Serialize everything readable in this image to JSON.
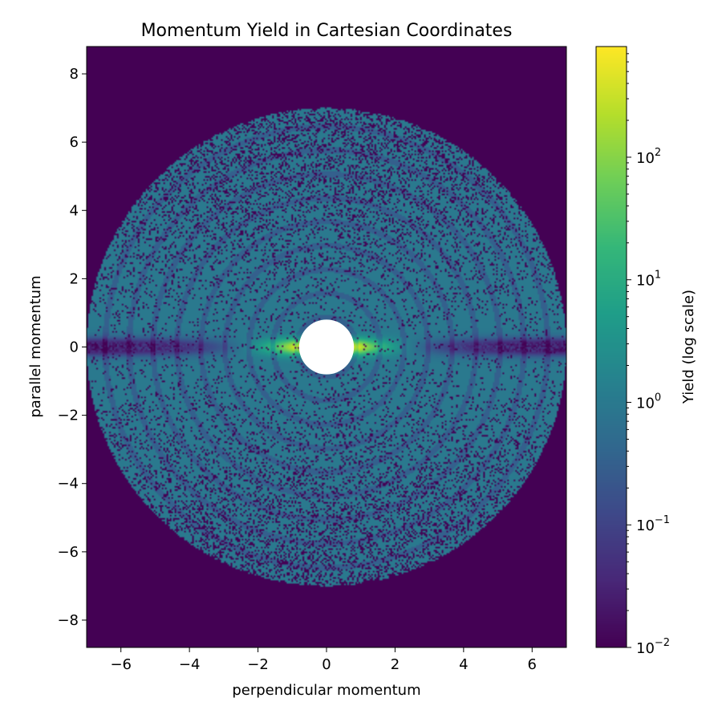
{
  "chart_data": {
    "type": "heatmap",
    "title": "Momentum Yield in Cartesian Coordinates",
    "xlabel": "perpendicular momentum",
    "ylabel": "parallel momentum",
    "xlim": [
      -7.0,
      7.0
    ],
    "ylim": [
      -8.8,
      8.8
    ],
    "x_ticks": [
      {
        "value": -6,
        "label": "−6"
      },
      {
        "value": -4,
        "label": "−4"
      },
      {
        "value": -2,
        "label": "−2"
      },
      {
        "value": 0,
        "label": "0"
      },
      {
        "value": 2,
        "label": "2"
      },
      {
        "value": 4,
        "label": "4"
      },
      {
        "value": 6,
        "label": "6"
      }
    ],
    "y_ticks": [
      {
        "value": 8,
        "label": "8"
      },
      {
        "value": 6,
        "label": "6"
      },
      {
        "value": 4,
        "label": "4"
      },
      {
        "value": 2,
        "label": "2"
      },
      {
        "value": 0,
        "label": "0"
      },
      {
        "value": -2,
        "label": "−2"
      },
      {
        "value": -4,
        "label": "−4"
      },
      {
        "value": -6,
        "label": "−6"
      },
      {
        "value": -8,
        "label": "−8"
      }
    ],
    "colorbar": {
      "label": "Yield (log scale)",
      "scale": "log",
      "colormap": "viridis",
      "range": [
        0.01,
        800
      ],
      "ticks": [
        {
          "value": 0.01,
          "base": "10",
          "exp": "−2"
        },
        {
          "value": 0.1,
          "base": "10",
          "exp": "−1"
        },
        {
          "value": 1,
          "base": "10",
          "exp": "0"
        },
        {
          "value": 10,
          "base": "10",
          "exp": "1"
        },
        {
          "value": 100,
          "base": "10",
          "exp": "2"
        }
      ]
    },
    "distribution": {
      "emission_radius": 7.0,
      "excluded_core_radius": 0.8,
      "peak_yield": 800,
      "floor_yield": 0.01,
      "equatorial_band_halfwidth": 0.25
    },
    "colors": {
      "background": "#440154",
      "peak": "#fde725",
      "core": "#ffffff"
    }
  }
}
